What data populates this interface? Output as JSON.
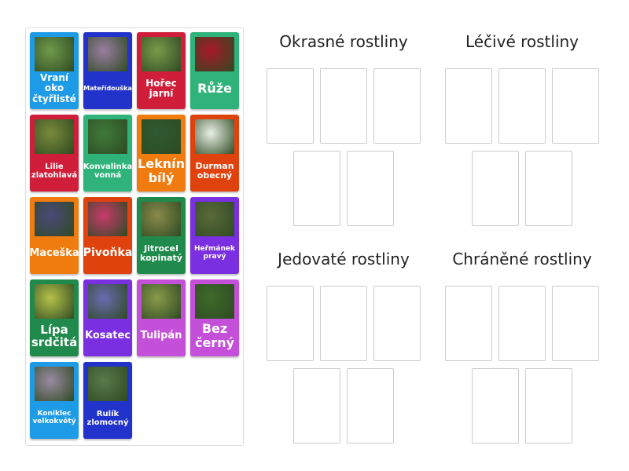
{
  "cards": [
    {
      "label": "Vraní oko čtyřlisté",
      "color": "#1e9be6",
      "img": "#6f9a4a",
      "size": 12
    },
    {
      "label": "Mateřídouška",
      "color": "#2233cc",
      "img": "#9a7ea2",
      "size": 8
    },
    {
      "label": "Hořec jarní",
      "color": "#d01e3a",
      "img": "#7a9a4a",
      "size": 12
    },
    {
      "label": "Růže",
      "color": "#2fb37a",
      "img": "#a81828",
      "size": 16
    },
    {
      "label": "Lilie zlatohlavá",
      "color": "#d01e3a",
      "img": "#7a8a3a",
      "size": 10
    },
    {
      "label": "Konvalinka vonná",
      "color": "#2fb37a",
      "img": "#3e7a3a",
      "size": 10
    },
    {
      "label": "Leknín bílý",
      "color": "#f07c10",
      "img": "#2f5a32",
      "size": 16
    },
    {
      "label": "Durman obecný",
      "color": "#e0420e",
      "img": "#e8efe4",
      "size": 11
    },
    {
      "label": "Maceška",
      "color": "#f07c10",
      "img": "#4a4a7a",
      "size": 13
    },
    {
      "label": "Pivoňka",
      "color": "#e0420e",
      "img": "#c83a6a",
      "size": 14
    },
    {
      "label": "Jitrocel kopinatý",
      "color": "#1f8a4c",
      "img": "#8a8a4a",
      "size": 11
    },
    {
      "label": "Heřmánek pravý",
      "color": "#7a2fe0",
      "img": "#5a6a3a",
      "size": 9
    },
    {
      "label": "Lípa srdčitá",
      "color": "#1f8a4c",
      "img": "#b6c24a",
      "size": 15
    },
    {
      "label": "Kosatec",
      "color": "#7a2fe0",
      "img": "#6a6ab2",
      "size": 13
    },
    {
      "label": "Tulipán",
      "color": "#c44fd8",
      "img": "#8a9a4a",
      "size": 13
    },
    {
      "label": "Bez černý",
      "color": "#c44fd8",
      "img": "#3e6a2a",
      "size": 16
    },
    {
      "label": "Koniklec velkokvětý",
      "color": "#1e9be6",
      "img": "#9a8aa2",
      "size": 9
    },
    {
      "label": "Rulík zlomocný",
      "color": "#2233cc",
      "img": "#5a7a4a",
      "size": 10
    }
  ],
  "groups": [
    {
      "title": "Okrasné rostliny"
    },
    {
      "title": "Léčivé rostliny"
    },
    {
      "title": "Jedovaté rostliny"
    },
    {
      "title": "Chráněné rostliny"
    }
  ]
}
